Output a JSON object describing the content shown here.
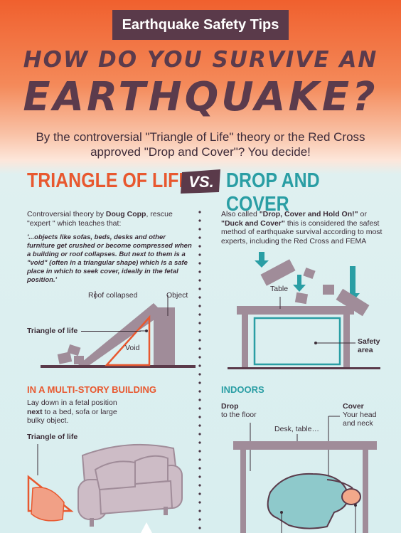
{
  "banner": {
    "tag": "Earthquake Safety Tips",
    "title_line1": "HOW DO YOU SURVIVE AN",
    "title_line2": "EARTHQUAKE?"
  },
  "subtitle": "By the controversial \"Triangle of Life\" theory or the Red Cross approved \"Drop and Cover\"? You decide!",
  "versus": {
    "left": "TRIANGLE OF LIFE",
    "badge": "VS.",
    "right": "DROP AND COVER"
  },
  "left": {
    "intro_pre": "Controversial theory by ",
    "intro_name": "Doug Copp",
    "intro_post": ", rescue \"expert \" which teaches that:",
    "quote": "'...objects like sofas, beds, desks and other furniture get crushed or become compressed when a building or roof collapses. But next to them is a \"void\" (often in a triangular shape) which is a safe place in which to seek cover, ideally in the fetal position.'",
    "labels": {
      "roof": "Roof collapsed",
      "object": "Object",
      "triangle": "Triangle of life",
      "void": "Void"
    },
    "section_title": "IN A MULTI-STORY BUILDING",
    "section_pre": "Lay down in a fetal position ",
    "section_bold": "next",
    "section_post": " to a bed, sofa or large bulky object.",
    "section_label": "Triangle of life"
  },
  "right": {
    "intro_pre": "Also called ",
    "intro_b1": "\"Drop, Cover and Hold On!\"",
    "intro_mid": " or ",
    "intro_b2": "\"Duck and Cover\"",
    "intro_post": " this is considered the safest method of earthquake survival according to most experts, including the Red Cross and FEMA",
    "labels": {
      "table": "Table",
      "safety_line1": "Safety",
      "safety_line2": "area"
    },
    "section_title": "INDOORS",
    "drop_b": "Drop",
    "drop_t": "to the floor",
    "cover_b": "Cover",
    "cover_t1": "Your head",
    "cover_t2": "and neck",
    "desk": "Desk, table…"
  },
  "colors": {
    "plum": "#5a3a4a",
    "orange": "#e8582f",
    "teal": "#2a9ea4",
    "mauve": "#a08c99"
  }
}
